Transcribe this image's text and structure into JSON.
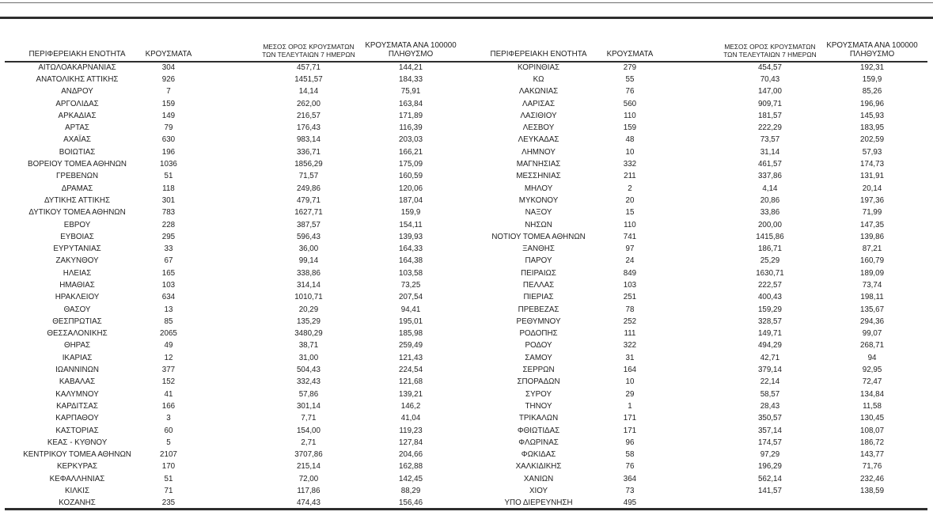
{
  "page": {
    "background": "#ffffff",
    "rule_color": "#2e2e2e",
    "text_color": "#222222"
  },
  "table": {
    "headers": {
      "region": "ΠΕΡΙΦΕΡΕΙΑΚΗ ΕΝΟΤΗΤΑ",
      "cases": "ΚΡΟΥΣΜΑΤΑ",
      "avg7": "ΜΕΣΟΣ ΟΡΟΣ ΚΡΟΥΣΜΑΤΩΝ ΤΩΝ ΤΕΛΕΥΤΑΙΩΝ 7 ΗΜΕΡΩΝ",
      "per100k": "ΚΡΟΥΣΜΑΤΑ ΑΝΑ 100000 ΠΛΗΘΥΣΜΟ"
    },
    "left_rows": [
      [
        "ΑΙΤΩΛΟΑΚΑΡΝΑΝΙΑΣ",
        "304",
        "457,71",
        "144,21"
      ],
      [
        "ΑΝΑΤΟΛΙΚΗΣ ΑΤΤΙΚΗΣ",
        "926",
        "1451,57",
        "184,33"
      ],
      [
        "ΑΝΔΡΟΥ",
        "7",
        "14,14",
        "75,91"
      ],
      [
        "ΑΡΓΟΛΙΔΑΣ",
        "159",
        "262,00",
        "163,84"
      ],
      [
        "ΑΡΚΑΔΙΑΣ",
        "149",
        "216,57",
        "171,89"
      ],
      [
        "ΑΡΤΑΣ",
        "79",
        "176,43",
        "116,39"
      ],
      [
        "ΑΧΑΪΑΣ",
        "630",
        "983,14",
        "203,03"
      ],
      [
        "ΒΟΙΩΤΙΑΣ",
        "196",
        "336,71",
        "166,21"
      ],
      [
        "ΒΟΡΕΙΟΥ ΤΟΜΕΑ ΑΘΗΝΩΝ",
        "1036",
        "1856,29",
        "175,09"
      ],
      [
        "ΓΡΕΒΕΝΩΝ",
        "51",
        "71,57",
        "160,59"
      ],
      [
        "ΔΡΑΜΑΣ",
        "118",
        "249,86",
        "120,06"
      ],
      [
        "ΔΥΤΙΚΗΣ ΑΤΤΙΚΗΣ",
        "301",
        "479,71",
        "187,04"
      ],
      [
        "ΔΥΤΙΚΟΥ ΤΟΜΕΑ ΑΘΗΝΩΝ",
        "783",
        "1627,71",
        "159,9"
      ],
      [
        "ΕΒΡΟΥ",
        "228",
        "387,57",
        "154,11"
      ],
      [
        "ΕΥΒΟΙΑΣ",
        "295",
        "596,43",
        "139,93"
      ],
      [
        "ΕΥΡΥΤΑΝΙΑΣ",
        "33",
        "36,00",
        "164,33"
      ],
      [
        "ΖΑΚΥΝΘΟΥ",
        "67",
        "99,14",
        "164,38"
      ],
      [
        "ΗΛΕΙΑΣ",
        "165",
        "338,86",
        "103,58"
      ],
      [
        "ΗΜΑΘΙΑΣ",
        "103",
        "314,14",
        "73,25"
      ],
      [
        "ΗΡΑΚΛΕΙΟΥ",
        "634",
        "1010,71",
        "207,54"
      ],
      [
        "ΘΑΣΟΥ",
        "13",
        "20,29",
        "94,41"
      ],
      [
        "ΘΕΣΠΡΩΤΙΑΣ",
        "85",
        "135,29",
        "195,01"
      ],
      [
        "ΘΕΣΣΑΛΟΝΙΚΗΣ",
        "2065",
        "3480,29",
        "185,98"
      ],
      [
        "ΘΗΡΑΣ",
        "49",
        "38,71",
        "259,49"
      ],
      [
        "ΙΚΑΡΙΑΣ",
        "12",
        "31,00",
        "121,43"
      ],
      [
        "ΙΩΑΝΝΙΝΩΝ",
        "377",
        "504,43",
        "224,54"
      ],
      [
        "ΚΑΒΑΛΑΣ",
        "152",
        "332,43",
        "121,68"
      ],
      [
        "ΚΑΛΥΜΝΟΥ",
        "41",
        "57,86",
        "139,21"
      ],
      [
        "ΚΑΡΔΙΤΣΑΣ",
        "166",
        "301,14",
        "146,2"
      ],
      [
        "ΚΑΡΠΑΘΟΥ",
        "3",
        "7,71",
        "41,04"
      ],
      [
        "ΚΑΣΤΟΡΙΑΣ",
        "60",
        "154,00",
        "119,23"
      ],
      [
        "ΚΕΑΣ - ΚΥΘΝΟΥ",
        "5",
        "2,71",
        "127,84"
      ],
      [
        "ΚΕΝΤΡΙΚΟΥ ΤΟΜΕΑ ΑΘΗΝΩΝ",
        "2107",
        "3707,86",
        "204,66"
      ],
      [
        "ΚΕΡΚΥΡΑΣ",
        "170",
        "215,14",
        "162,88"
      ],
      [
        "ΚΕΦΑΛΛΗΝΙΑΣ",
        "51",
        "72,00",
        "142,45"
      ],
      [
        "ΚΙΛΚΙΣ",
        "71",
        "117,86",
        "88,29"
      ],
      [
        "ΚΟΖΑΝΗΣ",
        "235",
        "474,43",
        "156,46"
      ]
    ],
    "right_rows": [
      [
        "ΚΟΡΙΝΘΙΑΣ",
        "279",
        "454,57",
        "192,31"
      ],
      [
        "ΚΩ",
        "55",
        "70,43",
        "159,9"
      ],
      [
        "ΛΑΚΩΝΙΑΣ",
        "76",
        "147,00",
        "85,26"
      ],
      [
        "ΛΑΡΙΣΑΣ",
        "560",
        "909,71",
        "196,96"
      ],
      [
        "ΛΑΣΙΘΙΟΥ",
        "110",
        "181,57",
        "145,93"
      ],
      [
        "ΛΕΣΒΟΥ",
        "159",
        "222,29",
        "183,95"
      ],
      [
        "ΛΕΥΚΑΔΑΣ",
        "48",
        "73,57",
        "202,59"
      ],
      [
        "ΛΗΜΝΟΥ",
        "10",
        "31,14",
        "57,93"
      ],
      [
        "ΜΑΓΝΗΣΙΑΣ",
        "332",
        "461,57",
        "174,73"
      ],
      [
        "ΜΕΣΣΗΝΙΑΣ",
        "211",
        "337,86",
        "131,91"
      ],
      [
        "ΜΗΛΟΥ",
        "2",
        "4,14",
        "20,14"
      ],
      [
        "ΜΥΚΟΝΟΥ",
        "20",
        "20,86",
        "197,36"
      ],
      [
        "ΝΑΞΟΥ",
        "15",
        "33,86",
        "71,99"
      ],
      [
        "ΝΗΣΩΝ",
        "110",
        "200,00",
        "147,35"
      ],
      [
        "ΝΟΤΙΟΥ ΤΟΜΕΑ ΑΘΗΝΩΝ",
        "741",
        "1415,86",
        "139,86"
      ],
      [
        "ΞΑΝΘΗΣ",
        "97",
        "186,71",
        "87,21"
      ],
      [
        "ΠΑΡΟΥ",
        "24",
        "25,29",
        "160,79"
      ],
      [
        "ΠΕΙΡΑΙΩΣ",
        "849",
        "1630,71",
        "189,09"
      ],
      [
        "ΠΕΛΛΑΣ",
        "103",
        "222,57",
        "73,74"
      ],
      [
        "ΠΙΕΡΙΑΣ",
        "251",
        "400,43",
        "198,11"
      ],
      [
        "ΠΡΕΒΕΖΑΣ",
        "78",
        "159,29",
        "135,67"
      ],
      [
        "ΡΕΘΥΜΝΟΥ",
        "252",
        "328,57",
        "294,36"
      ],
      [
        "ΡΟΔΟΠΗΣ",
        "111",
        "149,71",
        "99,07"
      ],
      [
        "ΡΟΔΟΥ",
        "322",
        "494,29",
        "268,71"
      ],
      [
        "ΣΑΜΟΥ",
        "31",
        "42,71",
        "94"
      ],
      [
        "ΣΕΡΡΩΝ",
        "164",
        "379,14",
        "92,95"
      ],
      [
        "ΣΠΟΡΑΔΩΝ",
        "10",
        "22,14",
        "72,47"
      ],
      [
        "ΣΥΡΟΥ",
        "29",
        "58,57",
        "134,84"
      ],
      [
        "ΤΗΝΟΥ",
        "1",
        "28,43",
        "11,58"
      ],
      [
        "ΤΡΙΚΑΛΩΝ",
        "171",
        "350,57",
        "130,45"
      ],
      [
        "ΦΘΙΩΤΙΔΑΣ",
        "171",
        "357,14",
        "108,07"
      ],
      [
        "ΦΛΩΡΙΝΑΣ",
        "96",
        "174,57",
        "186,72"
      ],
      [
        "ΦΩΚΙΔΑΣ",
        "58",
        "97,29",
        "143,77"
      ],
      [
        "ΧΑΛΚΙΔΙΚΗΣ",
        "76",
        "196,29",
        "71,76"
      ],
      [
        "ΧΑΝΙΩΝ",
        "364",
        "562,14",
        "232,46"
      ],
      [
        "ΧΙΟΥ",
        "73",
        "141,57",
        "138,59"
      ],
      [
        "ΥΠΟ ΔΙΕΡΕΥΝΗΣΗ",
        "495",
        "",
        ""
      ]
    ]
  }
}
